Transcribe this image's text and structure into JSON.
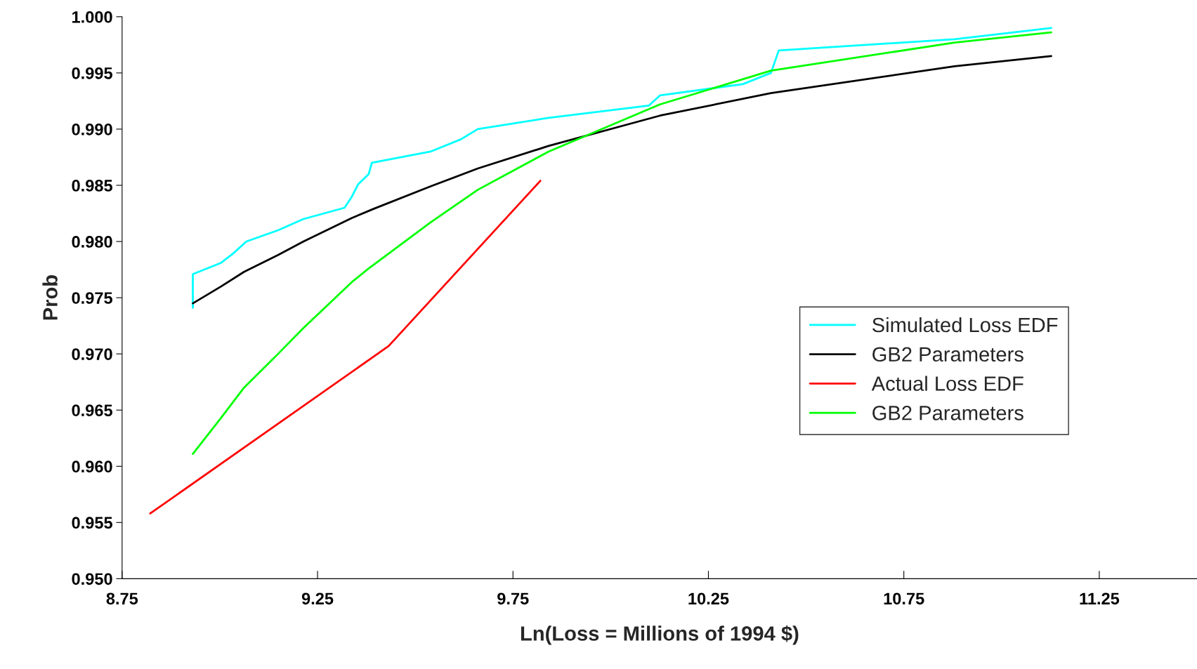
{
  "chart_data": {
    "type": "line",
    "xlabel": "Ln(Loss = Millions of 1994 $)",
    "ylabel": "Prob",
    "xlim": [
      8.75,
      11.5
    ],
    "xticks": [
      8.75,
      9.25,
      9.75,
      10.25,
      10.75,
      11.25
    ],
    "ylim": [
      0.95,
      1.0
    ],
    "yticks": [
      {
        "value": 0.95,
        "label": "0.950"
      },
      {
        "value": 0.955,
        "label": "0.955"
      },
      {
        "value": 0.96,
        "label": "0.960"
      },
      {
        "value": 0.965,
        "label": "0.965"
      },
      {
        "value": 0.97,
        "label": "0.970"
      },
      {
        "value": 0.975,
        "label": "0.975"
      },
      {
        "value": 0.98,
        "label": "0.980"
      },
      {
        "value": 0.985,
        "label": "0.985"
      },
      {
        "value": 0.99,
        "label": "0.990"
      },
      {
        "value": 0.995,
        "label": "0.995"
      },
      {
        "value": 1.0,
        "label": "1.000"
      }
    ],
    "grid": false,
    "legend": "right",
    "marker": "none",
    "line_style": "solid",
    "series": [
      {
        "name": "Simulated Loss EDF",
        "color": "#00ffff",
        "x": [
          8.931,
          8.931,
          9.003,
          9.033,
          9.068,
          9.149,
          9.214,
          9.319,
          9.338,
          9.354,
          9.381,
          9.389,
          9.539,
          9.617,
          9.66,
          9.841,
          10.098,
          10.126,
          10.338,
          10.41,
          10.43,
          10.88,
          11.127
        ],
        "values": [
          0.9741,
          0.9771,
          0.9781,
          0.9789,
          0.98,
          0.981,
          0.982,
          0.983,
          0.984,
          0.9851,
          0.986,
          0.987,
          0.988,
          0.9891,
          0.99,
          0.991,
          0.9921,
          0.993,
          0.994,
          0.995,
          0.997,
          0.998,
          0.999
        ]
      },
      {
        "name": "GB2 Parameters",
        "color": "#000000",
        "x": [
          8.931,
          9.003,
          9.062,
          9.149,
          9.214,
          9.338,
          9.393,
          9.539,
          9.66,
          9.841,
          10.126,
          10.41,
          10.88,
          11.127
        ],
        "values": [
          0.9745,
          0.976,
          0.9773,
          0.9788,
          0.98,
          0.9821,
          0.9829,
          0.9849,
          0.9865,
          0.9885,
          0.9912,
          0.9932,
          0.9956,
          0.9965
        ]
      },
      {
        "name": "Actual Loss EDF",
        "color": "#ff0000",
        "x": [
          8.822,
          9.432,
          9.82
        ],
        "values": [
          0.9558,
          0.9707,
          0.9854
        ]
      },
      {
        "name": "GB2 Parameters",
        "color": "#00ff00",
        "x": [
          8.931,
          9.003,
          9.062,
          9.149,
          9.214,
          9.338,
          9.381,
          9.539,
          9.66,
          9.841,
          10.126,
          10.41,
          10.88,
          11.127
        ],
        "values": [
          0.9611,
          0.9643,
          0.967,
          0.97,
          0.9723,
          0.9764,
          0.9776,
          0.9817,
          0.9846,
          0.988,
          0.9922,
          0.9952,
          0.9977,
          0.9986
        ]
      }
    ]
  }
}
